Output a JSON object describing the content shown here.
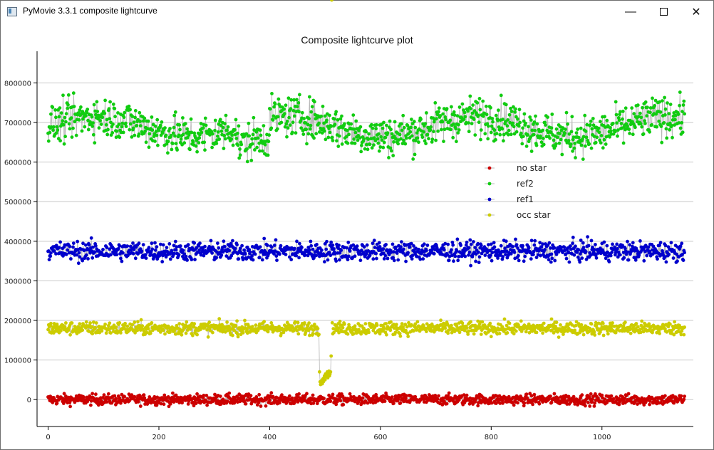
{
  "window": {
    "title": "PyMovie 3.3.1 composite lightcurve",
    "minimize_glyph": "—",
    "close_glyph": "✕"
  },
  "chart_data": {
    "type": "scatter",
    "title": "Composite lightcurve plot",
    "xlabel": "",
    "ylabel": "",
    "xlim": [
      -20,
      1165
    ],
    "ylim": [
      -68000,
      880000
    ],
    "x_ticks": [
      0,
      200,
      400,
      600,
      800,
      1000
    ],
    "y_ticks": [
      0,
      100000,
      200000,
      300000,
      400000,
      500000,
      600000,
      700000,
      800000
    ],
    "grid": {
      "x": false,
      "y": true
    },
    "legend_position": "middle-right",
    "n_points": 1150,
    "series": [
      {
        "name": "no star",
        "color": "#cc0000",
        "mean": 0,
        "spread": 12000
      },
      {
        "name": "ref2",
        "color": "#11cc11",
        "mean": 690000,
        "spread": 45000
      },
      {
        "name": "ref1",
        "color": "#0000cc",
        "mean": 375000,
        "spread": 22000
      },
      {
        "name": "occ star",
        "color": "#cccc00",
        "mean": 180000,
        "spread": 15000,
        "event": {
          "x_start": 490,
          "x_end": 512,
          "values": [
            70000,
            45000,
            38000,
            42000,
            48000,
            40000,
            52000,
            45000,
            55000,
            60000,
            50000,
            65000,
            58000,
            62000,
            70000,
            55000,
            68000,
            72000,
            60000,
            65000,
            70000,
            110000
          ]
        }
      }
    ]
  }
}
